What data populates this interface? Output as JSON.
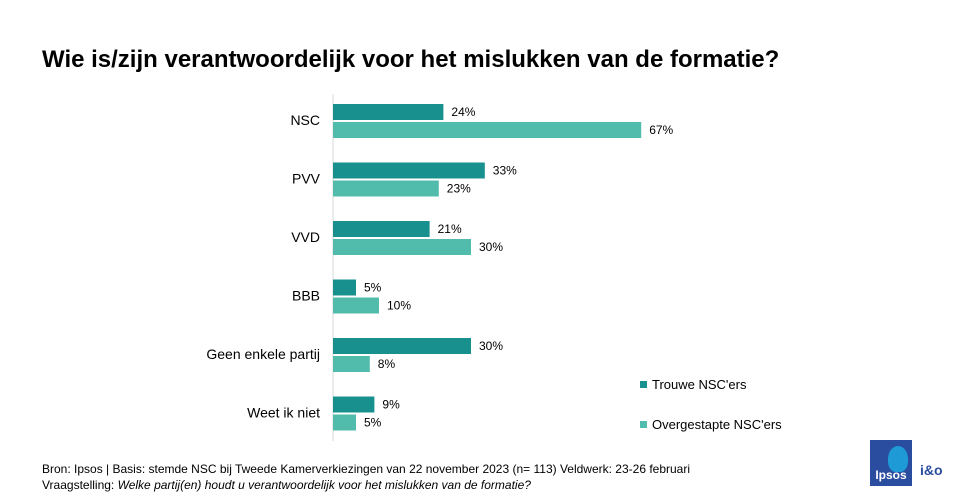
{
  "title": "Wie is/zijn verantwoordelijk voor het mislukken van de formatie?",
  "chart_data": {
    "type": "bar",
    "orientation": "horizontal",
    "title": "Wie is/zijn verantwoordelijk voor het mislukken van de formatie?",
    "categories": [
      "NSC",
      "PVV",
      "VVD",
      "BBB",
      "Geen enkele partij",
      "Weet ik niet"
    ],
    "series": [
      {
        "name": "Trouwe NSC'ers",
        "values": [
          24,
          33,
          21,
          5,
          30,
          9
        ],
        "labels": [
          "24%",
          "33%",
          "21%",
          "5%",
          "30%",
          "9%"
        ],
        "color": "#17908e"
      },
      {
        "name": "Overgestapte NSC'ers",
        "values": [
          67,
          23,
          30,
          10,
          8,
          5
        ],
        "labels": [
          "67%",
          "23%",
          "30%",
          "10%",
          "8%",
          "5%"
        ],
        "color": "#52bcac"
      }
    ],
    "xlim": [
      0,
      100
    ],
    "grid": false,
    "legend": "bottom-right",
    "value_suffix": "%"
  },
  "footer": {
    "source": "Bron: Ipsos | Basis: stemde NSC bij Tweede Kamerverkiezingen  van 22 november  2023 (n= 113) Veldwerk: 23-26 februari",
    "question_label": "Vraagstelling: ",
    "question_text": "Welke partij(en)  houdt u verantwoordelijk  voor het mislukken van de formatie?"
  },
  "logo": {
    "brand": "Ipsos",
    "partner": "i&o"
  }
}
